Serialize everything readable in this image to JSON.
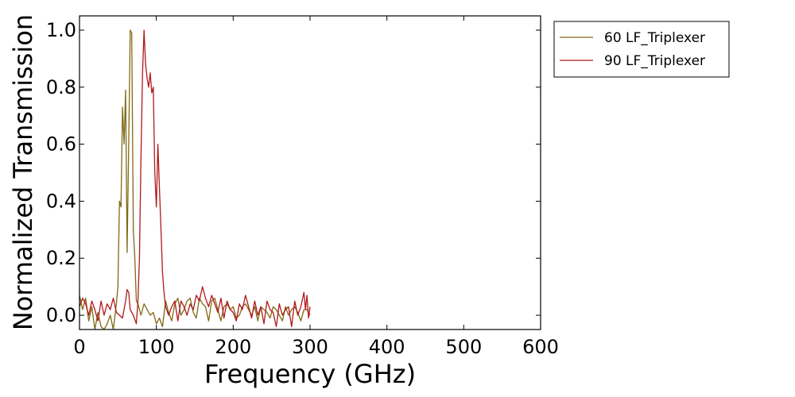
{
  "chart_data": {
    "type": "line",
    "title": "",
    "xlabel": "Frequency (GHz)",
    "ylabel": "Normalized Transmission",
    "xlim": [
      0,
      600
    ],
    "ylim": [
      -0.05,
      1.05
    ],
    "xticks": [
      0,
      100,
      200,
      300,
      400,
      500,
      600
    ],
    "yticks": [
      0.0,
      0.2,
      0.4,
      0.6,
      0.8,
      1.0
    ],
    "grid": false,
    "legend": "outside-top-right",
    "series": [
      {
        "name": "60 LF_Triplexer",
        "color": "#7f6a14",
        "x": [
          0,
          4,
          8,
          12,
          16,
          20,
          24,
          28,
          32,
          36,
          40,
          44,
          48,
          50,
          52,
          54,
          56,
          58,
          60,
          62,
          64,
          66,
          68,
          70,
          72,
          74,
          76,
          80,
          84,
          88,
          92,
          96,
          100,
          104,
          108,
          112,
          116,
          120,
          124,
          128,
          132,
          136,
          140,
          144,
          148,
          152,
          156,
          160,
          164,
          168,
          172,
          176,
          180,
          184,
          188,
          192,
          196,
          200,
          204,
          208,
          212,
          216,
          220,
          224,
          228,
          232,
          236,
          240,
          244,
          248,
          252,
          256,
          260,
          264,
          268,
          272,
          276,
          280,
          284,
          288,
          292,
          296,
          300
        ],
        "values": [
          0.07,
          0.02,
          0.06,
          -0.02,
          0.03,
          -0.05,
          0.01,
          -0.04,
          -0.05,
          -0.03,
          0.0,
          -0.05,
          0.04,
          0.1,
          0.4,
          0.38,
          0.73,
          0.6,
          0.79,
          0.22,
          0.6,
          1.0,
          0.99,
          0.3,
          0.2,
          0.05,
          0.04,
          0.0,
          0.04,
          0.02,
          0.0,
          0.01,
          -0.03,
          -0.01,
          -0.04,
          0.05,
          0.01,
          -0.02,
          0.04,
          0.06,
          0.0,
          0.02,
          0.05,
          0.06,
          0.01,
          -0.01,
          0.06,
          0.04,
          0.03,
          -0.02,
          0.05,
          0.06,
          0.02,
          -0.02,
          0.03,
          0.04,
          0.02,
          0.03,
          -0.01,
          0.0,
          0.03,
          0.04,
          0.02,
          0.0,
          0.03,
          -0.02,
          0.03,
          0.02,
          0.01,
          -0.01,
          0.03,
          0.02,
          0.0,
          -0.02,
          0.03,
          0.0,
          0.02,
          0.03,
          0.01,
          -0.02,
          0.02,
          0.02,
          0.0
        ]
      },
      {
        "name": "90 LF_Triplexer",
        "color": "#b2181b",
        "x": [
          0,
          4,
          8,
          12,
          16,
          20,
          24,
          28,
          32,
          36,
          40,
          44,
          48,
          52,
          56,
          60,
          62,
          64,
          66,
          70,
          74,
          76,
          78,
          80,
          82,
          84,
          86,
          88,
          90,
          92,
          94,
          96,
          98,
          100,
          102,
          104,
          106,
          108,
          110,
          112,
          116,
          120,
          124,
          128,
          132,
          136,
          140,
          144,
          148,
          152,
          156,
          160,
          164,
          168,
          172,
          176,
          180,
          184,
          188,
          192,
          196,
          200,
          204,
          208,
          212,
          216,
          220,
          224,
          228,
          232,
          236,
          240,
          244,
          248,
          252,
          256,
          260,
          264,
          268,
          272,
          276,
          280,
          284,
          288,
          292,
          294,
          296,
          298,
          300
        ],
        "values": [
          0.03,
          0.06,
          0.04,
          0.0,
          0.05,
          0.02,
          -0.02,
          0.05,
          0.0,
          0.04,
          0.02,
          0.06,
          0.01,
          0.0,
          -0.01,
          0.05,
          0.09,
          0.08,
          0.02,
          0.0,
          -0.03,
          0.05,
          0.2,
          0.55,
          0.85,
          1.0,
          0.88,
          0.83,
          0.8,
          0.85,
          0.78,
          0.8,
          0.5,
          0.38,
          0.6,
          0.45,
          0.3,
          0.15,
          0.08,
          0.03,
          0.0,
          0.03,
          0.05,
          -0.02,
          0.05,
          0.03,
          0.0,
          0.04,
          0.02,
          0.07,
          0.05,
          0.1,
          0.06,
          0.03,
          0.07,
          0.04,
          0.01,
          0.06,
          -0.01,
          0.05,
          0.02,
          0.01,
          -0.02,
          0.04,
          0.02,
          0.07,
          0.03,
          -0.01,
          0.05,
          0.0,
          0.03,
          -0.03,
          0.05,
          0.02,
          0.01,
          -0.04,
          0.04,
          0.0,
          0.02,
          0.03,
          -0.04,
          0.05,
          0.0,
          0.03,
          0.08,
          0.02,
          0.07,
          -0.01,
          0.03
        ]
      }
    ]
  }
}
